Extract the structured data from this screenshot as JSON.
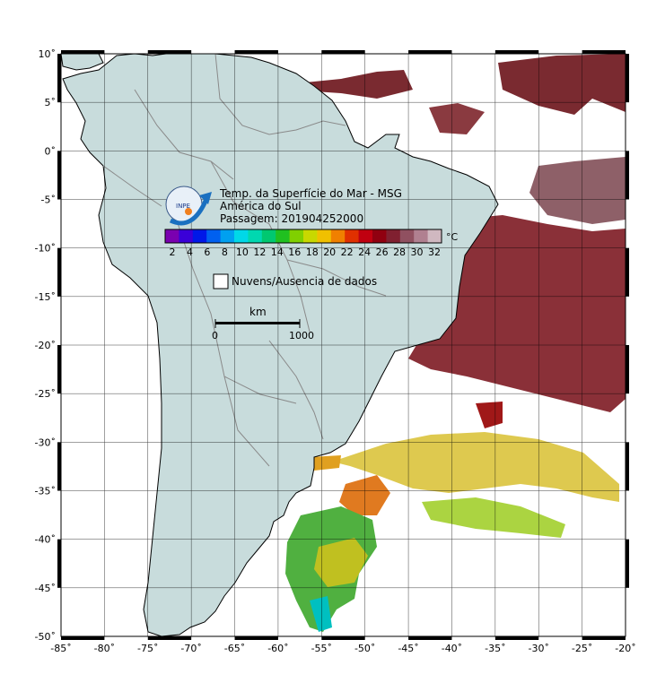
{
  "map": {
    "lon_range": [
      -85,
      -20
    ],
    "lat_range": [
      -50,
      10
    ],
    "lon_ticks": [
      {
        "v": -85,
        "label": "-85˚"
      },
      {
        "v": -80,
        "label": "-80˚"
      },
      {
        "v": -75,
        "label": "-75˚"
      },
      {
        "v": -70,
        "label": "-70˚"
      },
      {
        "v": -65,
        "label": "-65˚"
      },
      {
        "v": -60,
        "label": "-60˚"
      },
      {
        "v": -55,
        "label": "-55˚"
      },
      {
        "v": -50,
        "label": "-50˚"
      },
      {
        "v": -45,
        "label": "-45˚"
      },
      {
        "v": -40,
        "label": "-40˚"
      },
      {
        "v": -35,
        "label": "-35˚"
      },
      {
        "v": -30,
        "label": "-30˚"
      },
      {
        "v": -25,
        "label": "-25˚"
      },
      {
        "v": -20,
        "label": "-20˚"
      }
    ],
    "lat_ticks": [
      {
        "v": 10,
        "label": "10˚"
      },
      {
        "v": 5,
        "label": "5˚"
      },
      {
        "v": 0,
        "label": "0˚"
      },
      {
        "v": -5,
        "label": "-5˚"
      },
      {
        "v": -10,
        "label": "-10˚"
      },
      {
        "v": -15,
        "label": "-15˚"
      },
      {
        "v": -20,
        "label": "-20˚"
      },
      {
        "v": -25,
        "label": "-25˚"
      },
      {
        "v": -30,
        "label": "-30˚"
      },
      {
        "v": -35,
        "label": "-35˚"
      },
      {
        "v": -40,
        "label": "-40˚"
      },
      {
        "v": -45,
        "label": "-45˚"
      },
      {
        "v": -50,
        "label": "-50˚"
      }
    ],
    "land_color": "#c8dcdc",
    "grid": true
  },
  "legend": {
    "title_line1": "Temp. da Superfície do Mar - MSG",
    "title_line2": "América do Sul",
    "title_line3": "Passagem: 201904252000",
    "logo_text": "INPE",
    "colorbar_unit": "°C",
    "colorbar_labels": [
      "2",
      "4",
      "6",
      "8",
      "10",
      "12",
      "14",
      "16",
      "18",
      "20",
      "22",
      "24",
      "26",
      "28",
      "30",
      "32"
    ],
    "colorbar_colors": [
      "#7a00b0",
      "#3a00d8",
      "#0018e8",
      "#0060f0",
      "#00a0f0",
      "#00d8e8",
      "#00d8b0",
      "#00c870",
      "#20c020",
      "#80d000",
      "#c8d800",
      "#f0c000",
      "#f08000",
      "#e03000",
      "#c00010",
      "#900010",
      "#802030",
      "#905060",
      "#b08090",
      "#d0b8c0"
    ],
    "no_data_label": "Nuvens/Ausencia de dados",
    "scale_label": "km",
    "scale_start": "0",
    "scale_end": "1000"
  }
}
